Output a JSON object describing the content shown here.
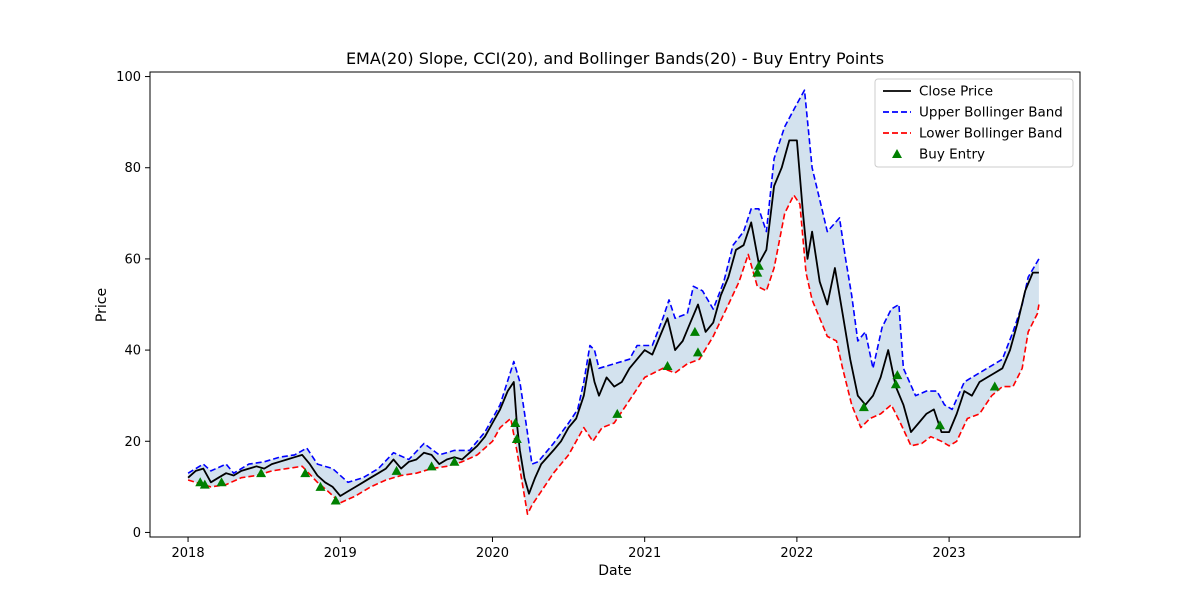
{
  "chart_data": {
    "type": "line",
    "title": "EMA(20) Slope, CCI(20), and Bollinger Bands(20) - Buy Entry Points",
    "xlabel": "Date",
    "ylabel": "Price",
    "xlim": [
      2017.75,
      2023.86
    ],
    "ylim": [
      -1,
      101
    ],
    "x_ticks": [
      2018,
      2019,
      2020,
      2021,
      2022,
      2023
    ],
    "x_tick_labels": [
      "2018",
      "2019",
      "2020",
      "2021",
      "2022",
      "2023"
    ],
    "y_ticks": [
      0,
      20,
      40,
      60,
      80,
      100
    ],
    "y_tick_labels": [
      "0",
      "20",
      "40",
      "60",
      "80",
      "100"
    ],
    "grid": false,
    "legend_position": "top-right",
    "legend": [
      {
        "label": "Close Price",
        "kind": "line",
        "color": "#000000",
        "dash": "solid"
      },
      {
        "label": "Upper Bollinger Band",
        "kind": "line",
        "color": "#0000ff",
        "dash": "dashed"
      },
      {
        "label": "Lower Bollinger Band",
        "kind": "line",
        "color": "#ff0000",
        "dash": "dashed"
      },
      {
        "label": "Buy Entry",
        "kind": "marker",
        "color": "#008000",
        "marker": "triangle"
      }
    ],
    "band_fill_color": "#aecbe0",
    "series": [
      {
        "name": "Close Price",
        "color": "#000000",
        "points": [
          [
            2018.0,
            12
          ],
          [
            2018.05,
            13.5
          ],
          [
            2018.1,
            14
          ],
          [
            2018.15,
            11
          ],
          [
            2018.2,
            12
          ],
          [
            2018.25,
            13
          ],
          [
            2018.3,
            12.5
          ],
          [
            2018.35,
            13.5
          ],
          [
            2018.4,
            14
          ],
          [
            2018.45,
            14.5
          ],
          [
            2018.5,
            14
          ],
          [
            2018.55,
            15
          ],
          [
            2018.6,
            15.5
          ],
          [
            2018.65,
            16
          ],
          [
            2018.7,
            16.5
          ],
          [
            2018.75,
            17
          ],
          [
            2018.8,
            15
          ],
          [
            2018.85,
            12.5
          ],
          [
            2018.9,
            11
          ],
          [
            2018.95,
            10
          ],
          [
            2019.0,
            8
          ],
          [
            2019.05,
            9
          ],
          [
            2019.1,
            10
          ],
          [
            2019.15,
            11
          ],
          [
            2019.2,
            12
          ],
          [
            2019.25,
            13
          ],
          [
            2019.3,
            14
          ],
          [
            2019.35,
            16
          ],
          [
            2019.4,
            14
          ],
          [
            2019.45,
            15.5
          ],
          [
            2019.5,
            16
          ],
          [
            2019.55,
            17.5
          ],
          [
            2019.6,
            17
          ],
          [
            2019.65,
            15
          ],
          [
            2019.7,
            16
          ],
          [
            2019.75,
            16.5
          ],
          [
            2019.8,
            16
          ],
          [
            2019.85,
            17.5
          ],
          [
            2019.9,
            19
          ],
          [
            2019.95,
            21
          ],
          [
            2020.0,
            24
          ],
          [
            2020.05,
            27
          ],
          [
            2020.1,
            31
          ],
          [
            2020.14,
            33
          ],
          [
            2020.16,
            24
          ],
          [
            2020.18,
            18
          ],
          [
            2020.21,
            12
          ],
          [
            2020.24,
            8.5
          ],
          [
            2020.28,
            12
          ],
          [
            2020.32,
            15
          ],
          [
            2020.4,
            18
          ],
          [
            2020.45,
            20
          ],
          [
            2020.5,
            23
          ],
          [
            2020.55,
            25
          ],
          [
            2020.6,
            30
          ],
          [
            2020.64,
            38
          ],
          [
            2020.67,
            33
          ],
          [
            2020.7,
            30
          ],
          [
            2020.75,
            34
          ],
          [
            2020.8,
            32
          ],
          [
            2020.85,
            33
          ],
          [
            2020.9,
            36
          ],
          [
            2020.95,
            38
          ],
          [
            2021.0,
            40
          ],
          [
            2021.05,
            39
          ],
          [
            2021.1,
            43
          ],
          [
            2021.15,
            47
          ],
          [
            2021.2,
            40
          ],
          [
            2021.25,
            42
          ],
          [
            2021.3,
            46
          ],
          [
            2021.35,
            50
          ],
          [
            2021.4,
            44
          ],
          [
            2021.45,
            46
          ],
          [
            2021.5,
            52
          ],
          [
            2021.55,
            56
          ],
          [
            2021.6,
            62
          ],
          [
            2021.65,
            63
          ],
          [
            2021.7,
            68
          ],
          [
            2021.75,
            59
          ],
          [
            2021.8,
            62
          ],
          [
            2021.85,
            76
          ],
          [
            2021.9,
            80
          ],
          [
            2021.95,
            86
          ],
          [
            2022.0,
            86
          ],
          [
            2022.04,
            70
          ],
          [
            2022.07,
            60
          ],
          [
            2022.1,
            66
          ],
          [
            2022.15,
            55
          ],
          [
            2022.2,
            50
          ],
          [
            2022.25,
            58
          ],
          [
            2022.3,
            48
          ],
          [
            2022.35,
            38
          ],
          [
            2022.4,
            30
          ],
          [
            2022.45,
            28
          ],
          [
            2022.5,
            30
          ],
          [
            2022.55,
            34
          ],
          [
            2022.6,
            40
          ],
          [
            2022.65,
            32
          ],
          [
            2022.7,
            28
          ],
          [
            2022.75,
            22
          ],
          [
            2022.8,
            24
          ],
          [
            2022.85,
            26
          ],
          [
            2022.9,
            27
          ],
          [
            2022.95,
            22
          ],
          [
            2023.0,
            22
          ],
          [
            2023.05,
            26
          ],
          [
            2023.1,
            31
          ],
          [
            2023.15,
            30
          ],
          [
            2023.2,
            33
          ],
          [
            2023.25,
            34
          ],
          [
            2023.3,
            35
          ],
          [
            2023.35,
            36
          ],
          [
            2023.4,
            40
          ],
          [
            2023.45,
            46
          ],
          [
            2023.5,
            53
          ],
          [
            2023.55,
            57
          ],
          [
            2023.59,
            57
          ]
        ]
      },
      {
        "name": "Upper Bollinger Band",
        "color": "#0000ff",
        "points": [
          [
            2018.0,
            13
          ],
          [
            2018.1,
            15
          ],
          [
            2018.15,
            13.5
          ],
          [
            2018.25,
            15
          ],
          [
            2018.3,
            13
          ],
          [
            2018.4,
            15
          ],
          [
            2018.5,
            15.5
          ],
          [
            2018.6,
            16.5
          ],
          [
            2018.7,
            17
          ],
          [
            2018.78,
            18.5
          ],
          [
            2018.85,
            15
          ],
          [
            2018.95,
            14
          ],
          [
            2019.05,
            11
          ],
          [
            2019.15,
            12
          ],
          [
            2019.25,
            14
          ],
          [
            2019.35,
            17.5
          ],
          [
            2019.45,
            16
          ],
          [
            2019.55,
            19.5
          ],
          [
            2019.65,
            17
          ],
          [
            2019.75,
            18
          ],
          [
            2019.85,
            18
          ],
          [
            2019.95,
            22
          ],
          [
            2020.05,
            28
          ],
          [
            2020.14,
            37.5
          ],
          [
            2020.18,
            33
          ],
          [
            2020.22,
            24
          ],
          [
            2020.26,
            15
          ],
          [
            2020.3,
            15.5
          ],
          [
            2020.4,
            19.5
          ],
          [
            2020.5,
            24
          ],
          [
            2020.56,
            27
          ],
          [
            2020.6,
            33
          ],
          [
            2020.64,
            41
          ],
          [
            2020.67,
            40
          ],
          [
            2020.7,
            36
          ],
          [
            2020.8,
            37
          ],
          [
            2020.9,
            38
          ],
          [
            2020.95,
            41
          ],
          [
            2021.05,
            41
          ],
          [
            2021.12,
            47
          ],
          [
            2021.16,
            51
          ],
          [
            2021.2,
            47
          ],
          [
            2021.28,
            48
          ],
          [
            2021.32,
            54
          ],
          [
            2021.38,
            53
          ],
          [
            2021.45,
            49
          ],
          [
            2021.52,
            55
          ],
          [
            2021.58,
            63
          ],
          [
            2021.65,
            66
          ],
          [
            2021.7,
            71
          ],
          [
            2021.75,
            71
          ],
          [
            2021.8,
            66
          ],
          [
            2021.85,
            82
          ],
          [
            2021.92,
            89
          ],
          [
            2022.0,
            94
          ],
          [
            2022.05,
            97
          ],
          [
            2022.1,
            80
          ],
          [
            2022.15,
            73
          ],
          [
            2022.2,
            66
          ],
          [
            2022.28,
            69
          ],
          [
            2022.32,
            60
          ],
          [
            2022.36,
            52
          ],
          [
            2022.4,
            42
          ],
          [
            2022.45,
            44
          ],
          [
            2022.5,
            36
          ],
          [
            2022.56,
            45
          ],
          [
            2022.62,
            49
          ],
          [
            2022.67,
            50
          ],
          [
            2022.7,
            36
          ],
          [
            2022.78,
            30
          ],
          [
            2022.85,
            31
          ],
          [
            2022.92,
            31
          ],
          [
            2022.97,
            28
          ],
          [
            2023.02,
            27
          ],
          [
            2023.1,
            33
          ],
          [
            2023.15,
            34
          ],
          [
            2023.25,
            36
          ],
          [
            2023.3,
            37
          ],
          [
            2023.35,
            38
          ],
          [
            2023.42,
            44
          ],
          [
            2023.48,
            50
          ],
          [
            2023.52,
            56
          ],
          [
            2023.59,
            60
          ]
        ]
      },
      {
        "name": "Lower Bollinger Band",
        "color": "#ff0000",
        "points": [
          [
            2018.0,
            11.5
          ],
          [
            2018.1,
            10.5
          ],
          [
            2018.15,
            10
          ],
          [
            2018.25,
            10.5
          ],
          [
            2018.35,
            12
          ],
          [
            2018.45,
            12.5
          ],
          [
            2018.55,
            13.5
          ],
          [
            2018.65,
            14
          ],
          [
            2018.75,
            14.5
          ],
          [
            2018.85,
            11
          ],
          [
            2018.92,
            9
          ],
          [
            2019.0,
            6.5
          ],
          [
            2019.1,
            8
          ],
          [
            2019.2,
            10
          ],
          [
            2019.3,
            11.5
          ],
          [
            2019.4,
            12.5
          ],
          [
            2019.5,
            13
          ],
          [
            2019.6,
            14
          ],
          [
            2019.7,
            14.5
          ],
          [
            2019.8,
            15.5
          ],
          [
            2019.9,
            17
          ],
          [
            2020.0,
            20
          ],
          [
            2020.05,
            23
          ],
          [
            2020.12,
            25
          ],
          [
            2020.16,
            18
          ],
          [
            2020.2,
            10
          ],
          [
            2020.23,
            4
          ],
          [
            2020.26,
            6
          ],
          [
            2020.32,
            9
          ],
          [
            2020.4,
            13
          ],
          [
            2020.5,
            17
          ],
          [
            2020.6,
            23
          ],
          [
            2020.66,
            20
          ],
          [
            2020.72,
            23
          ],
          [
            2020.8,
            24
          ],
          [
            2020.9,
            29
          ],
          [
            2021.0,
            34
          ],
          [
            2021.06,
            35
          ],
          [
            2021.12,
            36
          ],
          [
            2021.2,
            35
          ],
          [
            2021.28,
            37
          ],
          [
            2021.36,
            38
          ],
          [
            2021.45,
            43
          ],
          [
            2021.55,
            50
          ],
          [
            2021.62,
            55
          ],
          [
            2021.68,
            61
          ],
          [
            2021.74,
            54
          ],
          [
            2021.8,
            53
          ],
          [
            2021.85,
            58
          ],
          [
            2021.92,
            70
          ],
          [
            2021.98,
            74
          ],
          [
            2022.02,
            72
          ],
          [
            2022.06,
            57
          ],
          [
            2022.1,
            51
          ],
          [
            2022.2,
            43
          ],
          [
            2022.26,
            42
          ],
          [
            2022.3,
            36
          ],
          [
            2022.36,
            28
          ],
          [
            2022.42,
            23
          ],
          [
            2022.48,
            25
          ],
          [
            2022.55,
            26
          ],
          [
            2022.62,
            28
          ],
          [
            2022.68,
            24
          ],
          [
            2022.75,
            19
          ],
          [
            2022.82,
            19.5
          ],
          [
            2022.88,
            21
          ],
          [
            2022.95,
            20
          ],
          [
            2023.0,
            19
          ],
          [
            2023.05,
            20
          ],
          [
            2023.12,
            25
          ],
          [
            2023.2,
            26
          ],
          [
            2023.28,
            30
          ],
          [
            2023.35,
            32
          ],
          [
            2023.42,
            32
          ],
          [
            2023.48,
            36
          ],
          [
            2023.52,
            44
          ],
          [
            2023.58,
            48
          ],
          [
            2023.59,
            50
          ]
        ]
      }
    ],
    "buy_entries": [
      [
        2018.08,
        11
      ],
      [
        2018.11,
        10.5
      ],
      [
        2018.22,
        11
      ],
      [
        2018.48,
        13
      ],
      [
        2018.77,
        13
      ],
      [
        2018.87,
        10
      ],
      [
        2018.97,
        7
      ],
      [
        2019.37,
        13.5
      ],
      [
        2019.6,
        14.5
      ],
      [
        2019.75,
        15.5
      ],
      [
        2020.15,
        24
      ],
      [
        2020.16,
        20.5
      ],
      [
        2020.82,
        26
      ],
      [
        2021.15,
        36.5
      ],
      [
        2021.33,
        44
      ],
      [
        2021.35,
        39.5
      ],
      [
        2021.74,
        57
      ],
      [
        2021.75,
        58.5
      ],
      [
        2022.44,
        27.5
      ],
      [
        2022.65,
        32.5
      ],
      [
        2022.66,
        34.5
      ],
      [
        2022.94,
        23.5
      ],
      [
        2023.3,
        32
      ]
    ]
  }
}
